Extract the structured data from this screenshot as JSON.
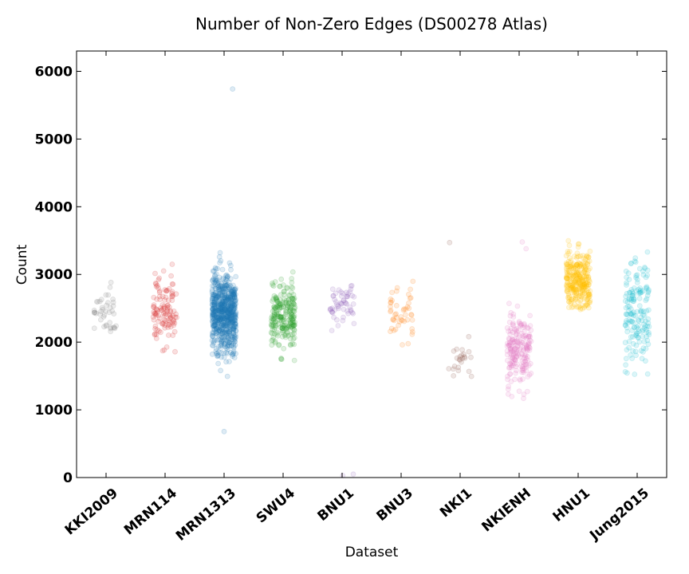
{
  "chart_data": {
    "type": "scatter",
    "title": "Number of Non-Zero Edges (DS00278 Atlas)",
    "xlabel": "Dataset",
    "ylabel": "Count",
    "ylim": [
      0,
      6300
    ],
    "yticks": [
      0,
      1000,
      2000,
      3000,
      4000,
      5000,
      6000
    ],
    "grid": false,
    "legend": "none",
    "point_alpha": 0.15,
    "categories": [
      "KKI2009",
      "MRN114",
      "MRN1313",
      "SWU4",
      "BNU1",
      "BNU3",
      "NKI1",
      "NKIENH",
      "HNU1",
      "Jung2015"
    ],
    "series": [
      {
        "color": "#7f7f7f",
        "count": 42,
        "center": 2520,
        "spread": 260,
        "min": 2150,
        "max": 3280,
        "outliers": []
      },
      {
        "color": "#d62728",
        "count": 114,
        "center": 2450,
        "spread": 280,
        "min": 1640,
        "max": 3280,
        "outliers": []
      },
      {
        "color": "#1f77b4",
        "count": 1313,
        "center": 2420,
        "spread": 280,
        "min": 1460,
        "max": 3610,
        "outliers": [
          5740,
          680
        ]
      },
      {
        "color": "#2ca02c",
        "count": 235,
        "center": 2400,
        "spread": 230,
        "min": 1730,
        "max": 3060,
        "outliers": []
      },
      {
        "color": "#9467bd",
        "count": 57,
        "center": 2530,
        "spread": 180,
        "min": 2150,
        "max": 2860,
        "outliers": [
          50,
          30
        ]
      },
      {
        "color": "#ff7f0e",
        "count": 48,
        "center": 2400,
        "spread": 220,
        "min": 1950,
        "max": 2900,
        "outliers": []
      },
      {
        "color": "#8c564b",
        "count": 24,
        "center": 1790,
        "spread": 180,
        "min": 1460,
        "max": 2160,
        "outliers": [
          3470
        ]
      },
      {
        "color": "#e377c2",
        "count": 198,
        "center": 1850,
        "spread": 260,
        "min": 1160,
        "max": 2600,
        "outliers": [
          3480,
          3380
        ]
      },
      {
        "color": "#ffc000",
        "count": 300,
        "center": 2900,
        "spread": 220,
        "min": 2480,
        "max": 3660,
        "outliers": []
      },
      {
        "color": "#17becf",
        "count": 165,
        "center": 2380,
        "spread": 420,
        "min": 1500,
        "max": 3720,
        "outliers": []
      }
    ]
  }
}
